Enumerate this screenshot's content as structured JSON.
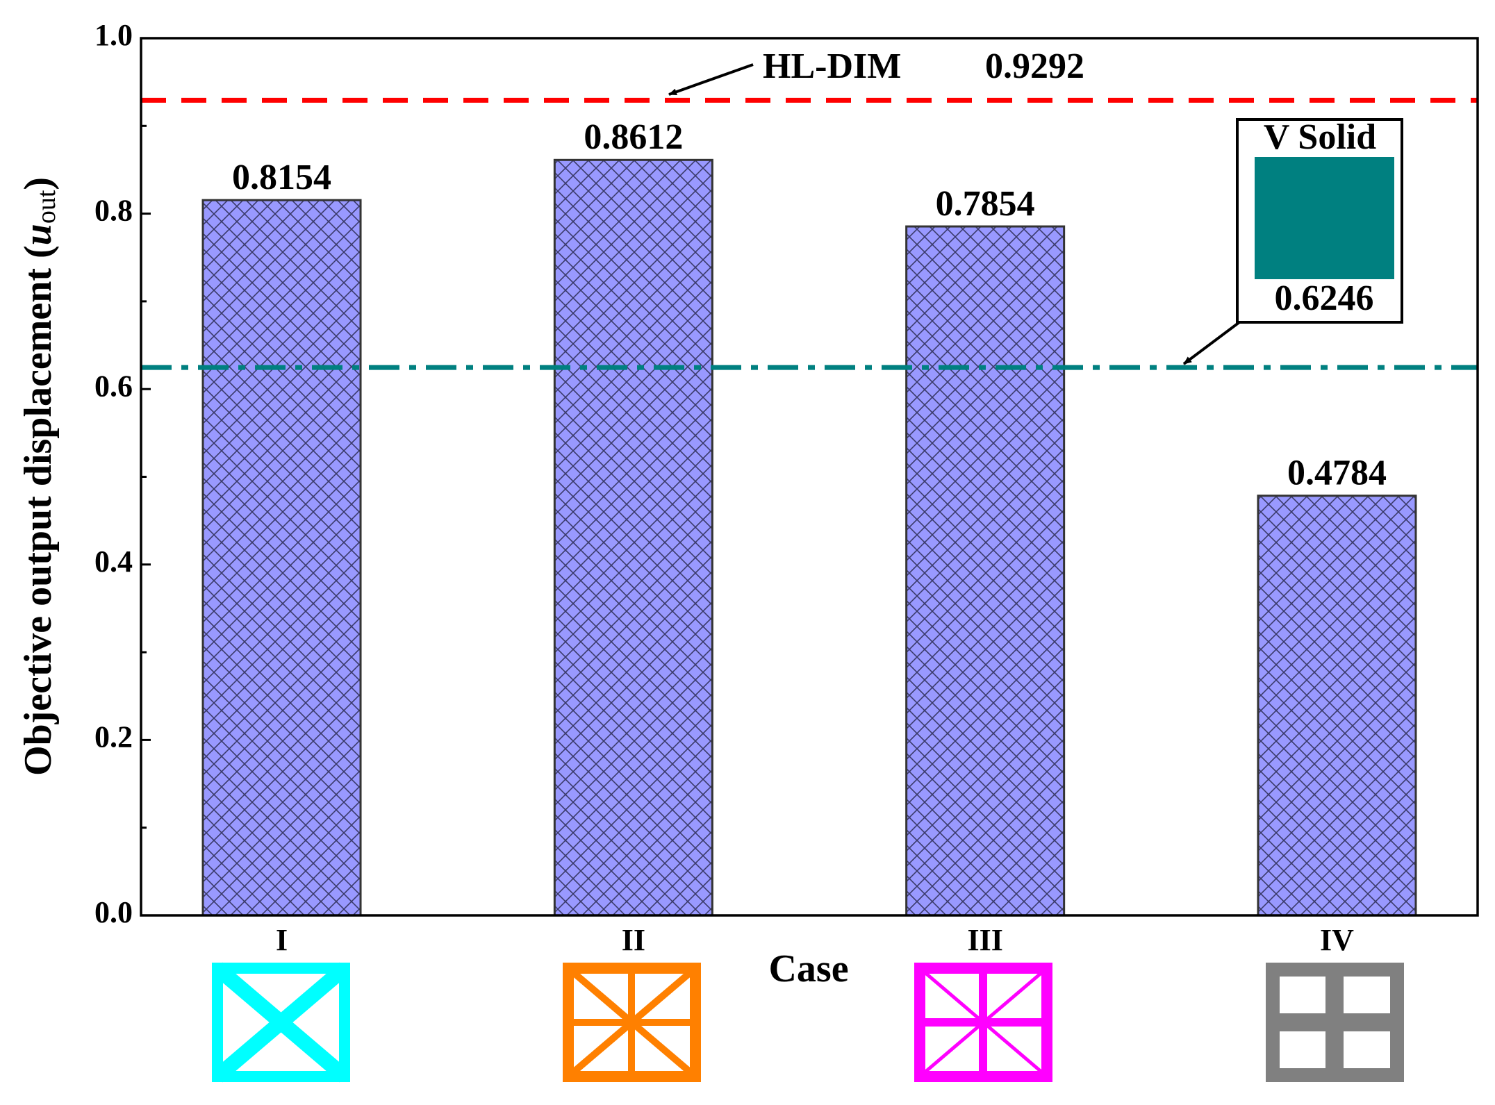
{
  "chart_data": {
    "type": "bar",
    "categories": [
      "I",
      "II",
      "III",
      "IV"
    ],
    "values": [
      0.8154,
      0.8612,
      0.7854,
      0.4784
    ],
    "color": "#9999ff",
    "x_label": "Case",
    "y_label": {
      "text": "Objective output displacement (",
      "symbol": "u",
      "subscript": "out",
      "close": ")"
    },
    "ylim": [
      0,
      1
    ],
    "yticks": [
      {
        "value": 0,
        "label": "0.0"
      },
      0.2,
      0.4,
      0.6,
      0.8,
      {
        "value": 1,
        "label": "1.0"
      }
    ],
    "yminorticks": [
      0.1,
      0.3,
      0.5,
      0.7,
      0.9
    ],
    "reference_lines": [
      {
        "label": "HL-DIM",
        "value": 0.9292,
        "color": "#ff0000",
        "style": "dashed"
      },
      {
        "label": "V Solid",
        "value": 0.6246,
        "color": "#008080",
        "style": "dashdot"
      }
    ]
  }
}
